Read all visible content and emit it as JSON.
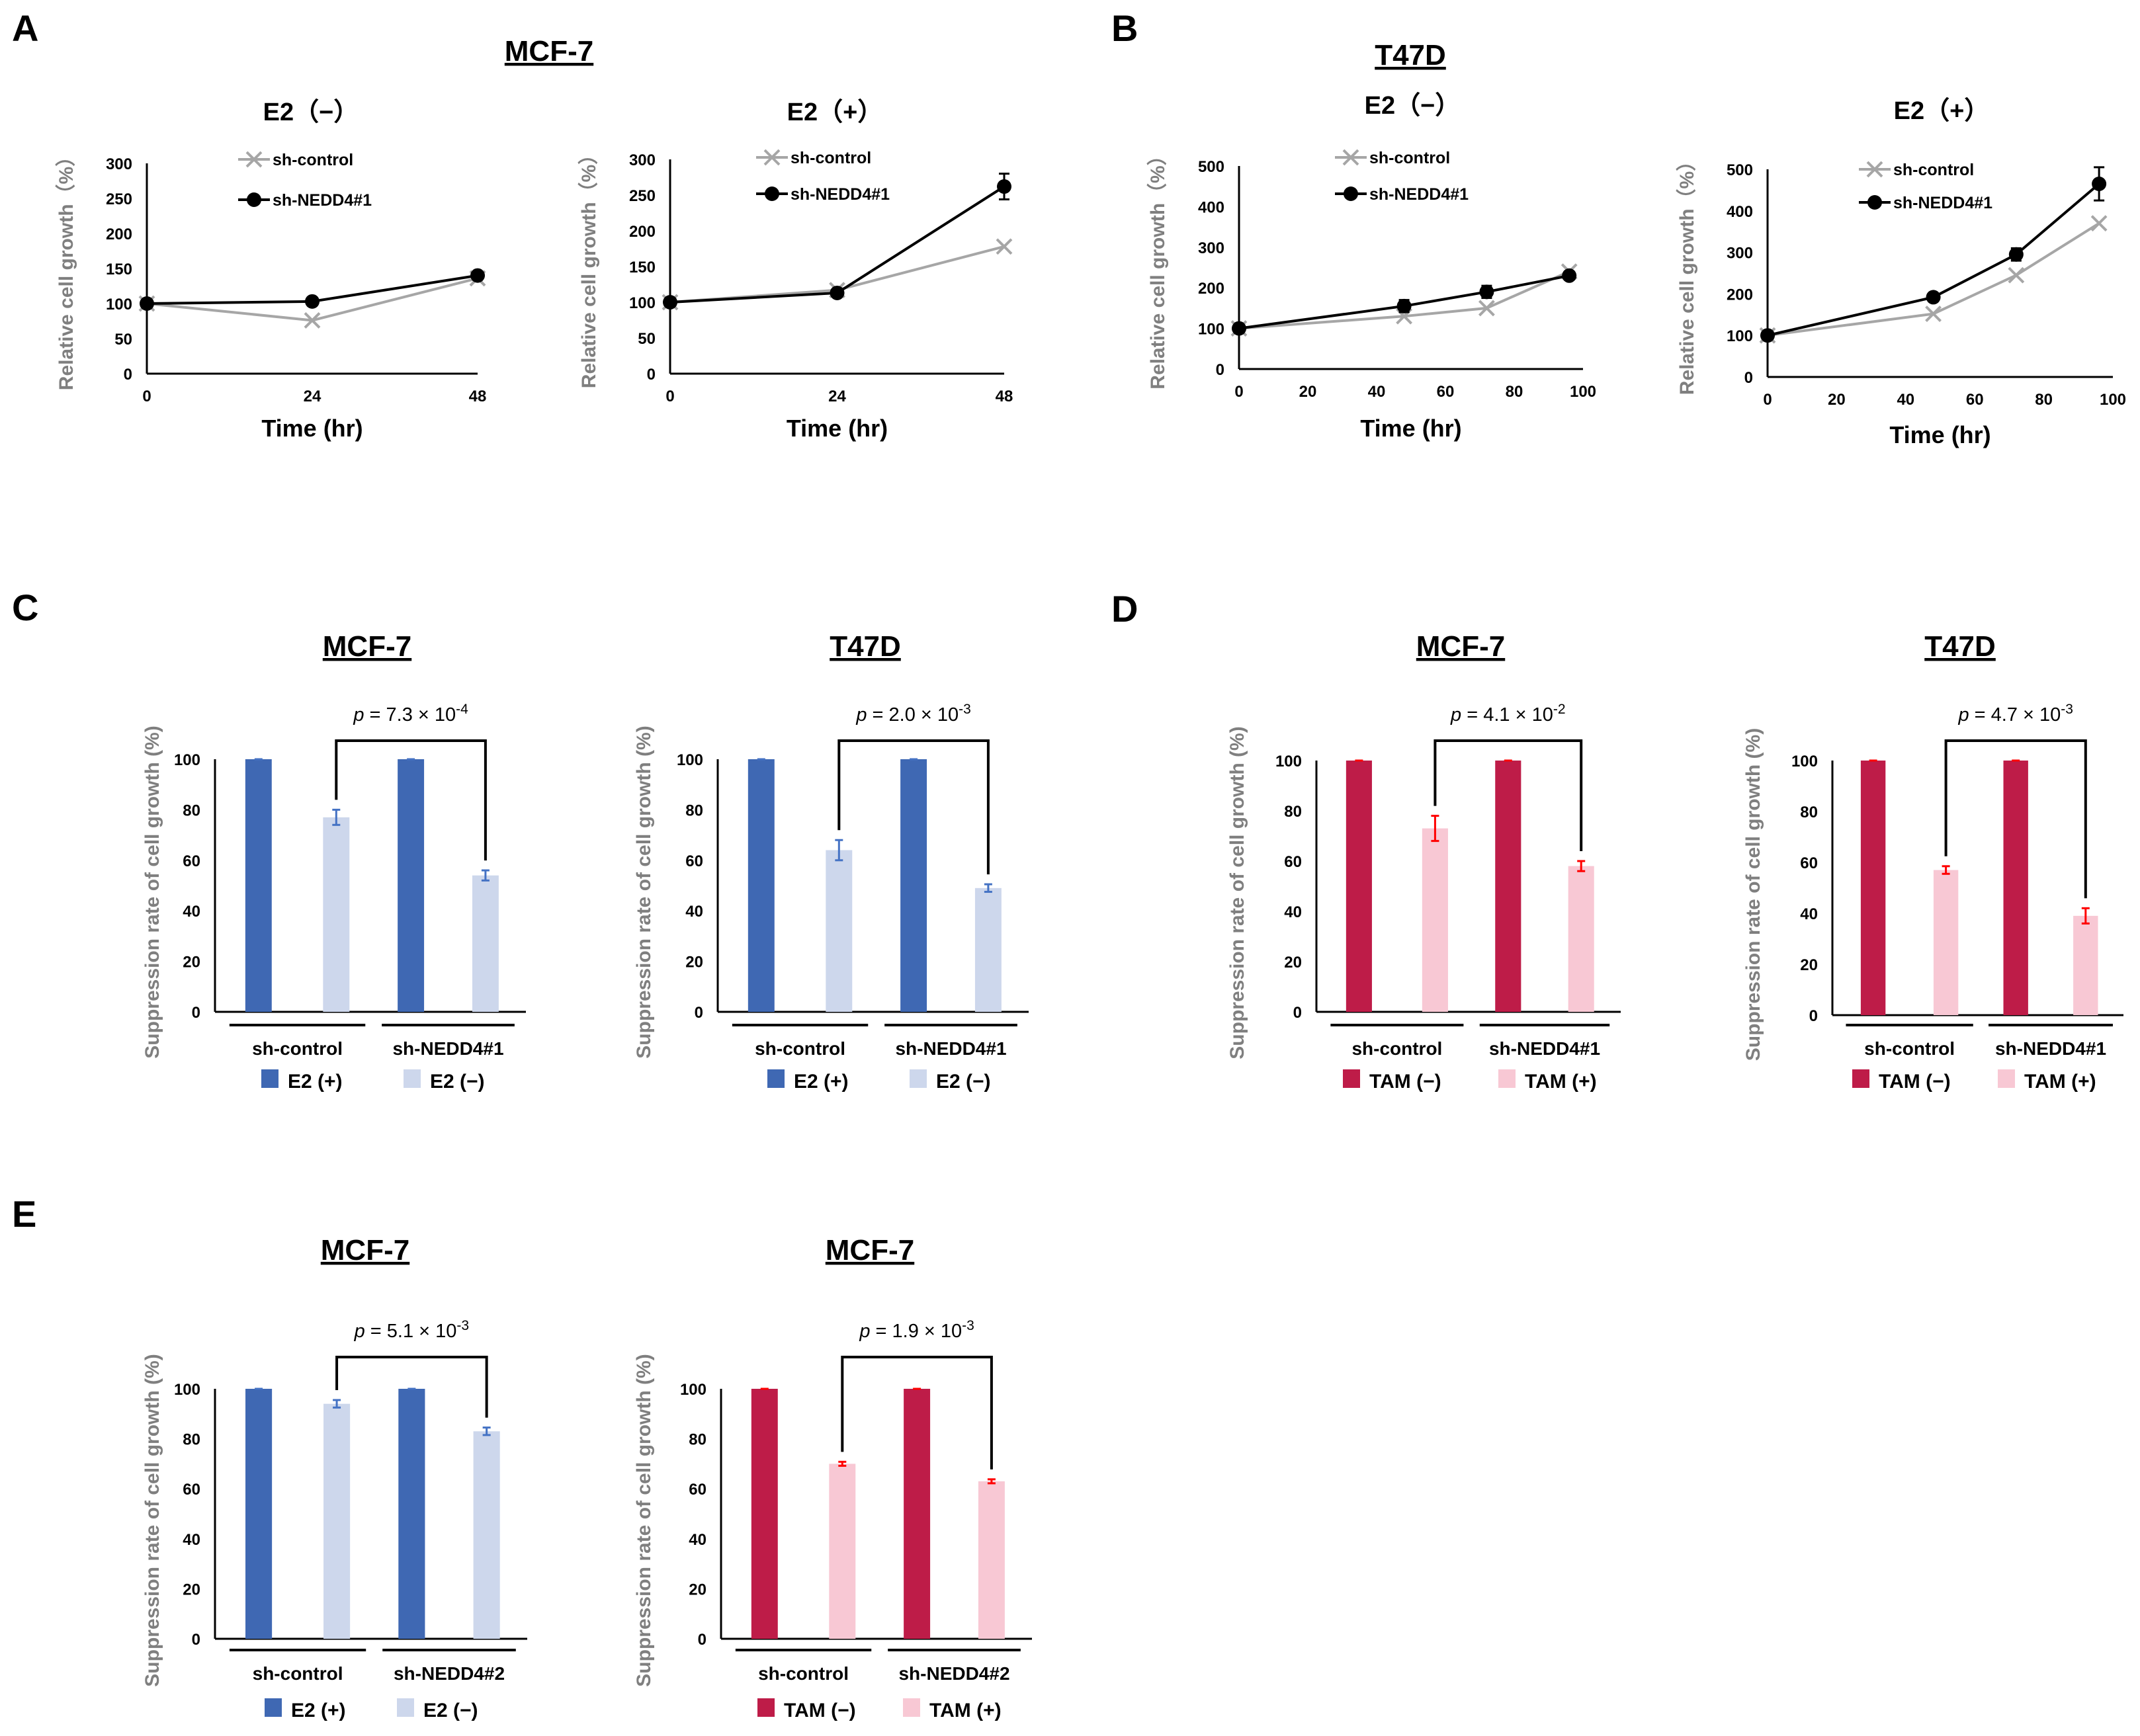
{
  "colors": {
    "control_line": "#a6a6a6",
    "nedd4_line": "#000000",
    "e2_plus": "#3f68b3",
    "e2_minus": "#cdd7ec",
    "tam_minus": "#be1c48",
    "tam_plus": "#f8c8d4",
    "err_blue": "#4472c4",
    "err_red": "#ff0000"
  },
  "chart_data": [
    {
      "panel": "A",
      "type": "line",
      "cell": "MCF-7",
      "title": "E2（−）",
      "xlabel": "Time (hr)",
      "ylabel": "Relative cell growth（%）",
      "xlim": [
        0,
        48
      ],
      "ylim": [
        0,
        300
      ],
      "xticks": [
        "0",
        "24",
        "48"
      ],
      "yticks": [
        "0",
        "50",
        "100",
        "150",
        "200",
        "250",
        "300"
      ],
      "x": [
        0,
        24,
        48
      ],
      "series": [
        {
          "name": "sh-control",
          "values": [
            100,
            76,
            136
          ]
        },
        {
          "name": "sh-NEDD4#1",
          "values": [
            100,
            103,
            140
          ]
        }
      ]
    },
    {
      "panel": "",
      "type": "line",
      "cell": "",
      "title": "E2（+）",
      "xlabel": "Time (hr)",
      "ylabel": "Relative cell growth（%）",
      "xlim": [
        0,
        48
      ],
      "ylim": [
        0,
        300
      ],
      "xticks": [
        "0",
        "24",
        "48"
      ],
      "yticks": [
        "0",
        "50",
        "100",
        "150",
        "200",
        "250",
        "300"
      ],
      "x": [
        0,
        24,
        48
      ],
      "series": [
        {
          "name": "sh-control",
          "values": [
            100,
            117,
            178
          ]
        },
        {
          "name": "sh-NEDD4#1",
          "values": [
            100,
            113,
            262
          ],
          "err": [
            0,
            3,
            18
          ]
        }
      ]
    },
    {
      "panel": "B",
      "type": "line",
      "cell": "T47D",
      "title": "E2（−）",
      "xlabel": "Time (hr)",
      "ylabel": "Relative cell growth（%）",
      "xlim": [
        0,
        100
      ],
      "ylim": [
        0,
        500
      ],
      "xticks": [
        "0",
        "20",
        "40",
        "60",
        "80",
        "100"
      ],
      "yticks": [
        "0",
        "100",
        "200",
        "300",
        "400",
        "500"
      ],
      "x": [
        0,
        48,
        72,
        96
      ],
      "series": [
        {
          "name": "sh-control",
          "values": [
            100,
            130,
            150,
            240
          ]
        },
        {
          "name": "sh-NEDD4#1",
          "values": [
            100,
            155,
            190,
            230
          ],
          "err": [
            0,
            15,
            15,
            10
          ]
        }
      ]
    },
    {
      "panel": "",
      "type": "line",
      "cell": "",
      "title": "E2（+）",
      "xlabel": "Time (hr)",
      "ylabel": "Relative cell growth（%）",
      "xlim": [
        0,
        100
      ],
      "ylim": [
        0,
        500
      ],
      "xticks": [
        "0",
        "20",
        "40",
        "60",
        "80",
        "100"
      ],
      "yticks": [
        "0",
        "100",
        "200",
        "300",
        "400",
        "500"
      ],
      "x": [
        0,
        48,
        72,
        96
      ],
      "series": [
        {
          "name": "sh-control",
          "values": [
            100,
            152,
            245,
            370
          ]
        },
        {
          "name": "sh-NEDD4#1",
          "values": [
            100,
            192,
            295,
            465
          ],
          "err": [
            0,
            5,
            15,
            40
          ]
        }
      ]
    },
    {
      "panel": "C",
      "type": "bar",
      "cell": "MCF-7",
      "ylabel": "Suppression rate of cell growth (%)",
      "ylim": [
        0,
        100
      ],
      "yticks": [
        "0",
        "20",
        "40",
        "60",
        "80",
        "100"
      ],
      "groups": [
        "sh-control",
        "sh-NEDD4#1"
      ],
      "series": [
        {
          "name": "E2 (+)",
          "values": [
            100,
            100
          ],
          "err": [
            0,
            0
          ]
        },
        {
          "name": "E2 (−)",
          "values": [
            77,
            54
          ],
          "err": [
            3,
            2
          ]
        }
      ],
      "p_value": {
        "prefix": "p",
        "eq": " = 7.3 × 10",
        "exp": "-4"
      },
      "palette": "blue"
    },
    {
      "panel": "",
      "type": "bar",
      "cell": "T47D",
      "ylabel": "Suppression rate of cell growth (%)",
      "ylim": [
        0,
        100
      ],
      "yticks": [
        "0",
        "20",
        "40",
        "60",
        "80",
        "100"
      ],
      "groups": [
        "sh-control",
        "sh-NEDD4#1"
      ],
      "series": [
        {
          "name": "E2 (+)",
          "values": [
            100,
            100
          ],
          "err": [
            0,
            0
          ]
        },
        {
          "name": "E2 (−)",
          "values": [
            64,
            49
          ],
          "err": [
            4,
            1.5
          ]
        }
      ],
      "p_value": {
        "prefix": "p",
        "eq": " = 2.0 × 10",
        "exp": "-3"
      },
      "palette": "blue"
    },
    {
      "panel": "D",
      "type": "bar",
      "cell": "MCF-7",
      "ylabel": "Suppression rate of cell growth (%)",
      "ylim": [
        0,
        100
      ],
      "yticks": [
        "0",
        "20",
        "40",
        "60",
        "80",
        "100"
      ],
      "groups": [
        "sh-control",
        "sh-NEDD4#1"
      ],
      "series": [
        {
          "name": "TAM (−)",
          "values": [
            100,
            100
          ],
          "err": [
            0,
            0
          ]
        },
        {
          "name": "TAM (+)",
          "values": [
            73,
            58
          ],
          "err": [
            5,
            2
          ]
        }
      ],
      "p_value": {
        "prefix": "p",
        "eq": " = 4.1 × 10",
        "exp": "-2"
      },
      "palette": "red"
    },
    {
      "panel": "",
      "type": "bar",
      "cell": "T47D",
      "ylabel": "Suppression rate of cell growth (%)",
      "ylim": [
        0,
        100
      ],
      "yticks": [
        "0",
        "20",
        "40",
        "60",
        "80",
        "100"
      ],
      "groups": [
        "sh-control",
        "sh-NEDD4#1"
      ],
      "series": [
        {
          "name": "TAM (−)",
          "values": [
            100,
            100
          ],
          "err": [
            0,
            0
          ]
        },
        {
          "name": "TAM (+)",
          "values": [
            57,
            39
          ],
          "err": [
            1.5,
            3
          ]
        }
      ],
      "p_value": {
        "prefix": "p",
        "eq": " = 4.7 × 10",
        "exp": "-3"
      },
      "palette": "red"
    },
    {
      "panel": "E",
      "type": "bar",
      "cell": "MCF-7",
      "ylabel": "Suppression rate of cell growth (%)",
      "ylim": [
        0,
        100
      ],
      "yticks": [
        "0",
        "20",
        "40",
        "60",
        "80",
        "100"
      ],
      "groups": [
        "sh-control",
        "sh-NEDD4#2"
      ],
      "series": [
        {
          "name": "E2 (+)",
          "values": [
            100,
            100
          ],
          "err": [
            0,
            0
          ]
        },
        {
          "name": "E2 (−)",
          "values": [
            94,
            83
          ],
          "err": [
            1.5,
            1.5
          ]
        }
      ],
      "p_value": {
        "prefix": "p",
        "eq": " = 5.1 × 10",
        "exp": "-3"
      },
      "palette": "blue"
    },
    {
      "panel": "",
      "type": "bar",
      "cell": "MCF-7",
      "ylabel": "Suppression rate of cell growth (%)",
      "ylim": [
        0,
        100
      ],
      "yticks": [
        "0",
        "20",
        "40",
        "60",
        "80",
        "100"
      ],
      "groups": [
        "sh-control",
        "sh-NEDD4#2"
      ],
      "series": [
        {
          "name": "TAM (−)",
          "values": [
            100,
            100
          ],
          "err": [
            0,
            0
          ]
        },
        {
          "name": "TAM (+)",
          "values": [
            70,
            63
          ],
          "err": [
            0.8,
            0.8
          ]
        }
      ],
      "p_value": {
        "prefix": "p",
        "eq": " = 1.9 × 10",
        "exp": "-3"
      },
      "palette": "red"
    }
  ]
}
